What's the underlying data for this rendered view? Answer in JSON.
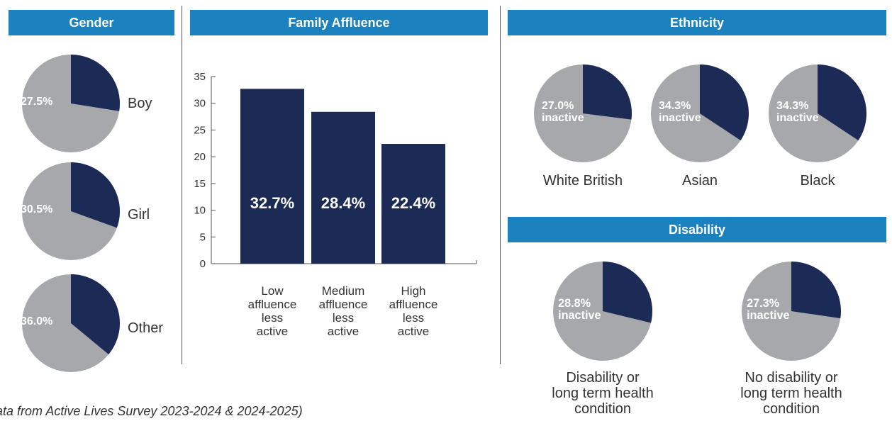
{
  "colors": {
    "header": "#1b82bf",
    "navy": "#1c2a56",
    "grey": "#a7a8ac",
    "pct_text": "#ffffff"
  },
  "headers": {
    "gender": "Gender",
    "family": "Family Affluence",
    "ethnicity": "Ethnicity",
    "disability": "Disability"
  },
  "footnote": "ata from Active Lives Survey 2023-2024 & 2024-2025)",
  "chart_data": [
    {
      "type": "pie",
      "title": "Gender",
      "slices": [
        {
          "label": "Boy",
          "value": 27.5,
          "text": "27.5%"
        },
        {
          "label": "Girl",
          "value": 30.5,
          "text": "30.5%"
        },
        {
          "label": "Other",
          "value": 36.0,
          "text": "36.0%"
        }
      ]
    },
    {
      "type": "bar",
      "title": "Family Affluence",
      "categories": [
        "Low affluence less active",
        "Medium affluence less active",
        "High affluence less active"
      ],
      "category_lines": [
        [
          "Low",
          "affluence",
          "less",
          "active"
        ],
        [
          "Medium",
          "affluence",
          "less",
          "active"
        ],
        [
          "High",
          "affluence",
          "less",
          "active"
        ]
      ],
      "values": [
        32.7,
        28.4,
        22.4
      ],
      "value_labels": [
        "32.7%",
        "28.4%",
        "22.4%"
      ],
      "ylim": [
        0,
        35
      ],
      "yticks": [
        0,
        5,
        10,
        15,
        20,
        25,
        30,
        35
      ]
    },
    {
      "type": "pie",
      "title": "Ethnicity",
      "slices": [
        {
          "label": "White British",
          "value": 27.0,
          "line1": "27.0%",
          "line2": "inactive"
        },
        {
          "label": "Asian",
          "value": 34.3,
          "line1": "34.3%",
          "line2": "inactive"
        },
        {
          "label": "Black",
          "value": 34.3,
          "line1": "34.3%",
          "line2": "inactive"
        }
      ]
    },
    {
      "type": "pie",
      "title": "Disability",
      "slices": [
        {
          "label": "Disability or long term health condition",
          "label_lines": [
            "Disability or",
            "long term health",
            "condition"
          ],
          "value": 28.8,
          "line1": "28.8%",
          "line2": "inactive"
        },
        {
          "label": "No disability or long term health condition",
          "label_lines": [
            "No disability or",
            "long term health",
            "condition"
          ],
          "value": 27.3,
          "line1": "27.3%",
          "line2": "inactive"
        }
      ]
    }
  ]
}
